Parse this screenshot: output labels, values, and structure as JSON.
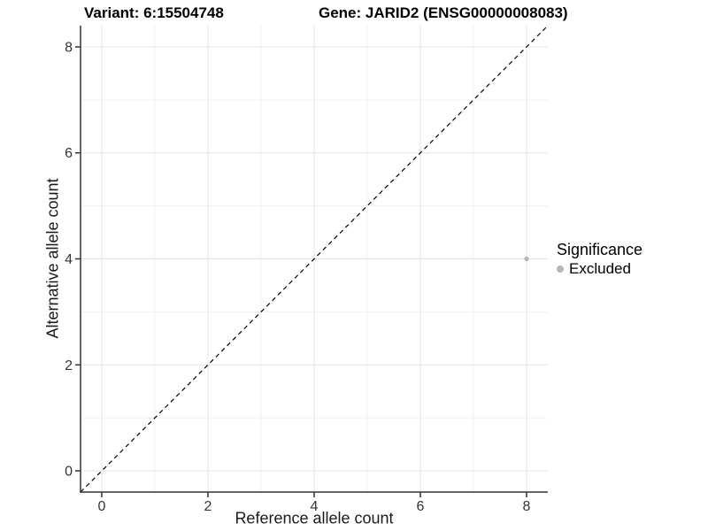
{
  "chart_data": {
    "type": "scatter",
    "title_left": "Variant: 6:15504748",
    "title_right": "Gene: JARID2 (ENSG00000008083)",
    "xlabel": "Reference allele count",
    "ylabel": "Alternative allele count",
    "x_ticks": [
      0,
      2,
      4,
      6,
      8
    ],
    "y_ticks": [
      0,
      2,
      4,
      6,
      8
    ],
    "xlim": [
      -0.4,
      8.4
    ],
    "ylim": [
      -0.4,
      8.4
    ],
    "grid": "major and minor gridlines, white panel background",
    "reference_line": {
      "slope": 1,
      "intercept": 0,
      "style": "dashed",
      "color": "#000000"
    },
    "series": [
      {
        "name": "Excluded",
        "color": "#b5b5b5",
        "point_radius": 2.6,
        "points": [
          {
            "x": 8,
            "y": 4
          }
        ]
      }
    ],
    "legend": {
      "title": "Significance",
      "position": "right",
      "items": [
        {
          "label": "Excluded",
          "color": "#b5b5b5"
        }
      ]
    },
    "colors": {
      "axis_line": "#333333",
      "tick_mark": "#333333",
      "tick_label": "#333333",
      "grid_major": "#e3e3e3",
      "grid_minor": "#f1f1f1"
    }
  }
}
